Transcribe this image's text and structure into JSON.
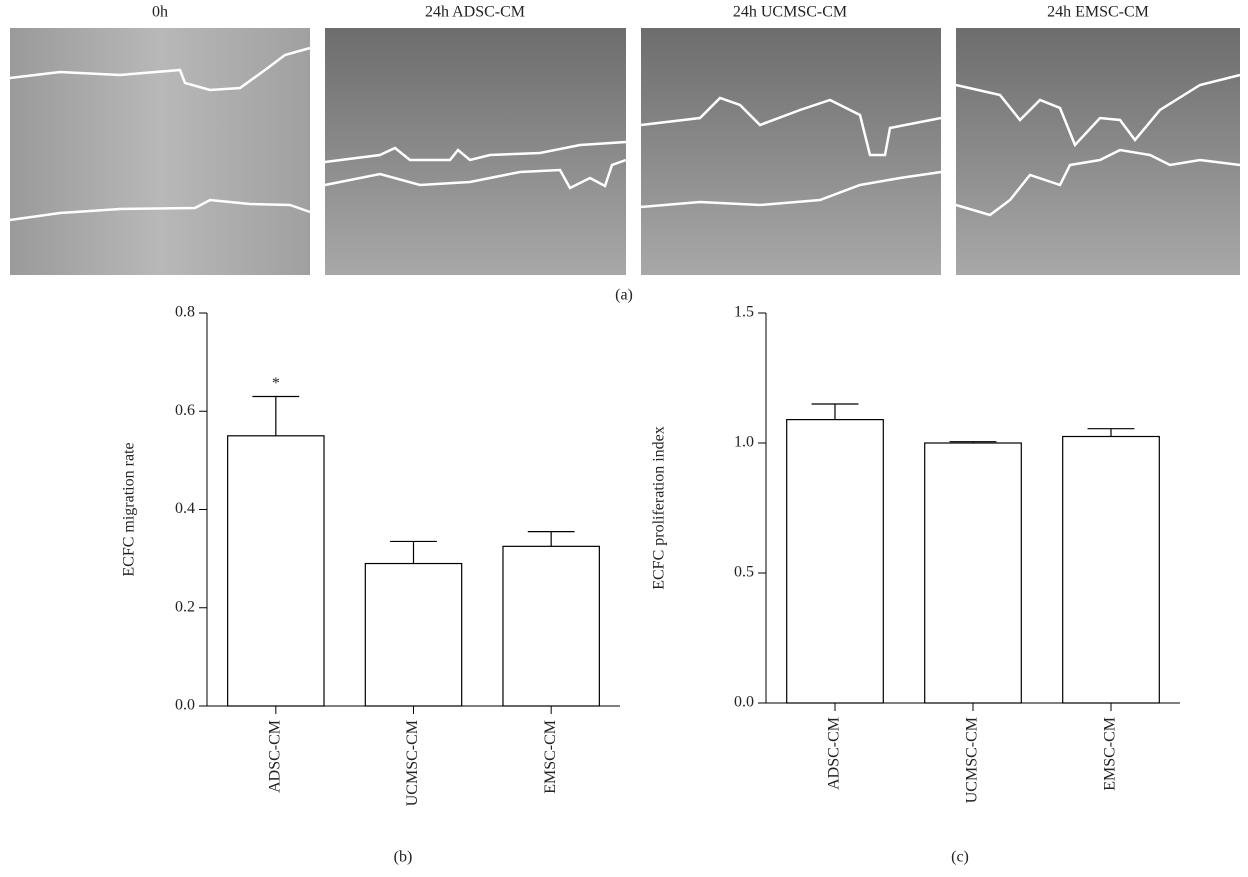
{
  "images": [
    {
      "title": "0h"
    },
    {
      "title": "24h ADSC-CM"
    },
    {
      "title": "24h UCMSC-CM"
    },
    {
      "title": "24h EMSC-CM"
    }
  ],
  "panel_labels": [
    "(a)",
    "(b)",
    "(c)"
  ],
  "chart_data": [
    {
      "type": "bar",
      "ylabel": "ECFC migration rate",
      "categories": [
        "ADSC-CM",
        "UCMSC-CM",
        "EMSC-CM"
      ],
      "values": [
        0.55,
        0.29,
        0.325
      ],
      "errors": [
        0.08,
        0.045,
        0.03
      ],
      "color": "#ffffff",
      "ylim": [
        0,
        0.8
      ],
      "yticks": [
        {
          "value": 0,
          "label": "0.0"
        },
        0.2,
        0.4,
        0.6,
        0.8
      ],
      "annotations": [
        {
          "text": "*",
          "x": "ADSC-CM"
        }
      ]
    },
    {
      "type": "bar",
      "ylabel": "ECFC proliferation index",
      "categories": [
        "ADSC-CM",
        "UCMSC-CM",
        "EMSC-CM"
      ],
      "values": [
        1.09,
        1.0,
        1.025
      ],
      "errors": [
        0.06,
        0.005,
        0.03
      ],
      "color": "#ffffff",
      "ylim": [
        0,
        1.5
      ],
      "yticks": [
        {
          "value": 0,
          "label": "0.0"
        },
        0.5,
        {
          "value": 1,
          "label": "1.0"
        },
        1.5
      ]
    }
  ]
}
